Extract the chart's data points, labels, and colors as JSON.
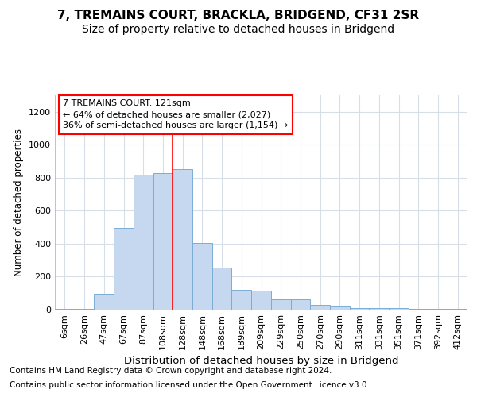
{
  "title1": "7, TREMAINS COURT, BRACKLA, BRIDGEND, CF31 2SR",
  "title2": "Size of property relative to detached houses in Bridgend",
  "xlabel": "Distribution of detached houses by size in Bridgend",
  "ylabel": "Number of detached properties",
  "bin_labels": [
    "6sqm",
    "26sqm",
    "47sqm",
    "67sqm",
    "87sqm",
    "108sqm",
    "128sqm",
    "148sqm",
    "168sqm",
    "189sqm",
    "209sqm",
    "229sqm",
    "250sqm",
    "270sqm",
    "290sqm",
    "311sqm",
    "331sqm",
    "351sqm",
    "371sqm",
    "392sqm",
    "412sqm"
  ],
  "bar_heights": [
    5,
    5,
    95,
    495,
    820,
    830,
    850,
    405,
    255,
    120,
    115,
    65,
    65,
    30,
    20,
    12,
    12,
    12,
    5,
    5,
    5
  ],
  "bar_color": "#c5d8f0",
  "bar_edge_color": "#7aadd4",
  "annotation_text": "7 TREMAINS COURT: 121sqm\n← 64% of detached houses are smaller (2,027)\n36% of semi-detached houses are larger (1,154) →",
  "footer1": "Contains HM Land Registry data © Crown copyright and database right 2024.",
  "footer2": "Contains public sector information licensed under the Open Government Licence v3.0.",
  "background_color": "#ffffff",
  "plot_bg_color": "#ffffff",
  "ylim": [
    0,
    1300
  ],
  "yticks": [
    0,
    200,
    400,
    600,
    800,
    1000,
    1200
  ],
  "grid_color": "#d8dee8",
  "title1_fontsize": 11,
  "title2_fontsize": 10,
  "xlabel_fontsize": 9.5,
  "ylabel_fontsize": 8.5,
  "tick_fontsize": 8,
  "annot_fontsize": 8,
  "footer_fontsize": 7.5
}
